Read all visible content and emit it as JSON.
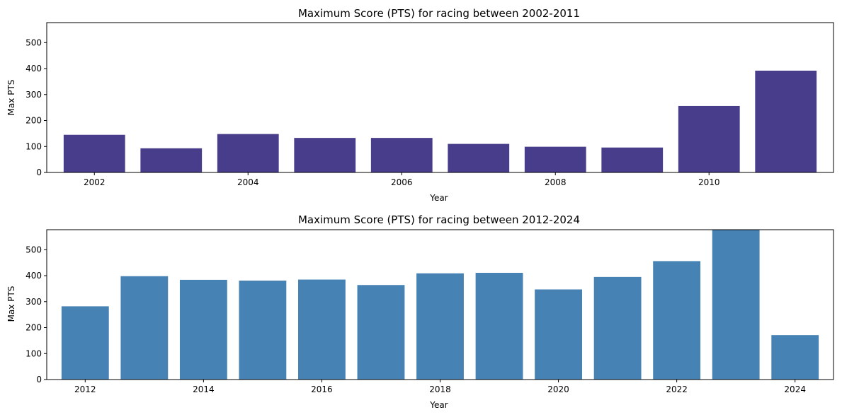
{
  "chart_data": [
    {
      "type": "bar",
      "title": "Maximum Score (PTS) for racing between 2002-2011",
      "xlabel": "Year",
      "ylabel": "Max PTS",
      "color": "#483D8B",
      "categories": [
        2002,
        2003,
        2004,
        2005,
        2006,
        2007,
        2008,
        2009,
        2010,
        2011
      ],
      "values": [
        145,
        93,
        148,
        133,
        133,
        110,
        99,
        96,
        256,
        392
      ],
      "xticks": [
        2002,
        2004,
        2006,
        2008,
        2010
      ],
      "xlim": [
        2001.38,
        2011.62
      ],
      "yticks": [
        0,
        100,
        200,
        300,
        400,
        500
      ],
      "ylim": [
        0,
        577
      ],
      "grid": false
    },
    {
      "type": "bar",
      "title": "Maximum Score (PTS) for racing between 2012-2024",
      "xlabel": "Year",
      "ylabel": "Max PTS",
      "color": "#4682B4",
      "categories": [
        2012,
        2013,
        2014,
        2015,
        2016,
        2017,
        2018,
        2019,
        2020,
        2021,
        2022,
        2023,
        2024
      ],
      "values": [
        282,
        398,
        384,
        381,
        385,
        364,
        409,
        411,
        347,
        395,
        456,
        577,
        171
      ],
      "xticks": [
        2012,
        2014,
        2016,
        2018,
        2020,
        2022,
        2024
      ],
      "xlim": [
        2011.35,
        2024.65
      ],
      "yticks": [
        0,
        100,
        200,
        300,
        400,
        500
      ],
      "ylim": [
        0,
        577
      ],
      "grid": false
    }
  ]
}
